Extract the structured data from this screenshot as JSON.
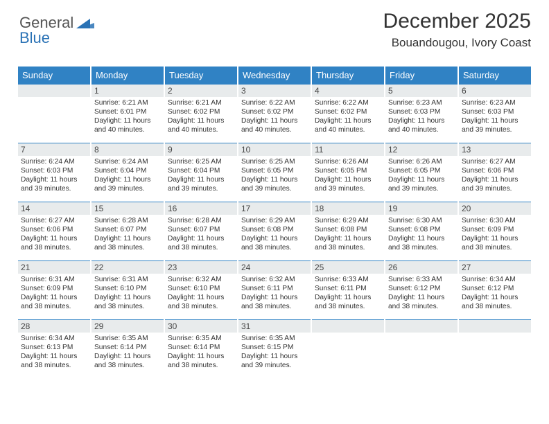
{
  "brand": {
    "part1": "General",
    "part2": "Blue"
  },
  "title": "December 2025",
  "location": "Bouandougou, Ivory Coast",
  "colors": {
    "header_bg": "#3082c4",
    "header_fg": "#ffffff",
    "daynum_bg": "#e8ebec",
    "rule": "#3082c4",
    "brand_blue": "#2a72b5",
    "text": "#333333"
  },
  "weekdays": [
    "Sunday",
    "Monday",
    "Tuesday",
    "Wednesday",
    "Thursday",
    "Friday",
    "Saturday"
  ],
  "weeks": [
    [
      null,
      {
        "n": "1",
        "sr": "6:21 AM",
        "ss": "6:01 PM",
        "dl": "11 hours and 40 minutes."
      },
      {
        "n": "2",
        "sr": "6:21 AM",
        "ss": "6:02 PM",
        "dl": "11 hours and 40 minutes."
      },
      {
        "n": "3",
        "sr": "6:22 AM",
        "ss": "6:02 PM",
        "dl": "11 hours and 40 minutes."
      },
      {
        "n": "4",
        "sr": "6:22 AM",
        "ss": "6:02 PM",
        "dl": "11 hours and 40 minutes."
      },
      {
        "n": "5",
        "sr": "6:23 AM",
        "ss": "6:03 PM",
        "dl": "11 hours and 40 minutes."
      },
      {
        "n": "6",
        "sr": "6:23 AM",
        "ss": "6:03 PM",
        "dl": "11 hours and 39 minutes."
      }
    ],
    [
      {
        "n": "7",
        "sr": "6:24 AM",
        "ss": "6:03 PM",
        "dl": "11 hours and 39 minutes."
      },
      {
        "n": "8",
        "sr": "6:24 AM",
        "ss": "6:04 PM",
        "dl": "11 hours and 39 minutes."
      },
      {
        "n": "9",
        "sr": "6:25 AM",
        "ss": "6:04 PM",
        "dl": "11 hours and 39 minutes."
      },
      {
        "n": "10",
        "sr": "6:25 AM",
        "ss": "6:05 PM",
        "dl": "11 hours and 39 minutes."
      },
      {
        "n": "11",
        "sr": "6:26 AM",
        "ss": "6:05 PM",
        "dl": "11 hours and 39 minutes."
      },
      {
        "n": "12",
        "sr": "6:26 AM",
        "ss": "6:05 PM",
        "dl": "11 hours and 39 minutes."
      },
      {
        "n": "13",
        "sr": "6:27 AM",
        "ss": "6:06 PM",
        "dl": "11 hours and 39 minutes."
      }
    ],
    [
      {
        "n": "14",
        "sr": "6:27 AM",
        "ss": "6:06 PM",
        "dl": "11 hours and 38 minutes."
      },
      {
        "n": "15",
        "sr": "6:28 AM",
        "ss": "6:07 PM",
        "dl": "11 hours and 38 minutes."
      },
      {
        "n": "16",
        "sr": "6:28 AM",
        "ss": "6:07 PM",
        "dl": "11 hours and 38 minutes."
      },
      {
        "n": "17",
        "sr": "6:29 AM",
        "ss": "6:08 PM",
        "dl": "11 hours and 38 minutes."
      },
      {
        "n": "18",
        "sr": "6:29 AM",
        "ss": "6:08 PM",
        "dl": "11 hours and 38 minutes."
      },
      {
        "n": "19",
        "sr": "6:30 AM",
        "ss": "6:08 PM",
        "dl": "11 hours and 38 minutes."
      },
      {
        "n": "20",
        "sr": "6:30 AM",
        "ss": "6:09 PM",
        "dl": "11 hours and 38 minutes."
      }
    ],
    [
      {
        "n": "21",
        "sr": "6:31 AM",
        "ss": "6:09 PM",
        "dl": "11 hours and 38 minutes."
      },
      {
        "n": "22",
        "sr": "6:31 AM",
        "ss": "6:10 PM",
        "dl": "11 hours and 38 minutes."
      },
      {
        "n": "23",
        "sr": "6:32 AM",
        "ss": "6:10 PM",
        "dl": "11 hours and 38 minutes."
      },
      {
        "n": "24",
        "sr": "6:32 AM",
        "ss": "6:11 PM",
        "dl": "11 hours and 38 minutes."
      },
      {
        "n": "25",
        "sr": "6:33 AM",
        "ss": "6:11 PM",
        "dl": "11 hours and 38 minutes."
      },
      {
        "n": "26",
        "sr": "6:33 AM",
        "ss": "6:12 PM",
        "dl": "11 hours and 38 minutes."
      },
      {
        "n": "27",
        "sr": "6:34 AM",
        "ss": "6:12 PM",
        "dl": "11 hours and 38 minutes."
      }
    ],
    [
      {
        "n": "28",
        "sr": "6:34 AM",
        "ss": "6:13 PM",
        "dl": "11 hours and 38 minutes."
      },
      {
        "n": "29",
        "sr": "6:35 AM",
        "ss": "6:14 PM",
        "dl": "11 hours and 38 minutes."
      },
      {
        "n": "30",
        "sr": "6:35 AM",
        "ss": "6:14 PM",
        "dl": "11 hours and 38 minutes."
      },
      {
        "n": "31",
        "sr": "6:35 AM",
        "ss": "6:15 PM",
        "dl": "11 hours and 39 minutes."
      },
      null,
      null,
      null
    ]
  ],
  "labels": {
    "sunrise": "Sunrise:",
    "sunset": "Sunset:",
    "daylight": "Daylight:"
  }
}
